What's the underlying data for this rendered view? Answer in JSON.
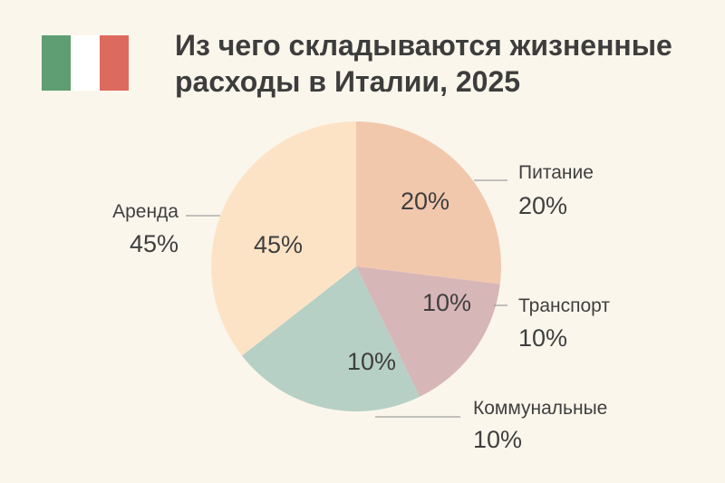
{
  "title": "Из чего складываются жизненные расходы в Италии, 2025",
  "flag": {
    "name": "italy-flag",
    "colors": [
      "#5e9e72",
      "#ffffff",
      "#dd6a5e"
    ]
  },
  "chart_data": {
    "type": "pie",
    "title": "Из чего складываются жизненные расходы в Италии, 2025",
    "start_angle_deg": 0,
    "direction": "clockwise",
    "slices": [
      {
        "name": "Питание",
        "value": 20,
        "label": "20%",
        "color": "#f2c8ad"
      },
      {
        "name": "Транспорт",
        "value": 10,
        "label": "10%",
        "color": "#d7b6b8"
      },
      {
        "name": "Коммунальные",
        "value": 10,
        "label": "10%",
        "color": "#b7d0c5"
      },
      {
        "name": "Аренда",
        "value": 45,
        "label": "45%",
        "color": "#fde3c6"
      }
    ]
  }
}
